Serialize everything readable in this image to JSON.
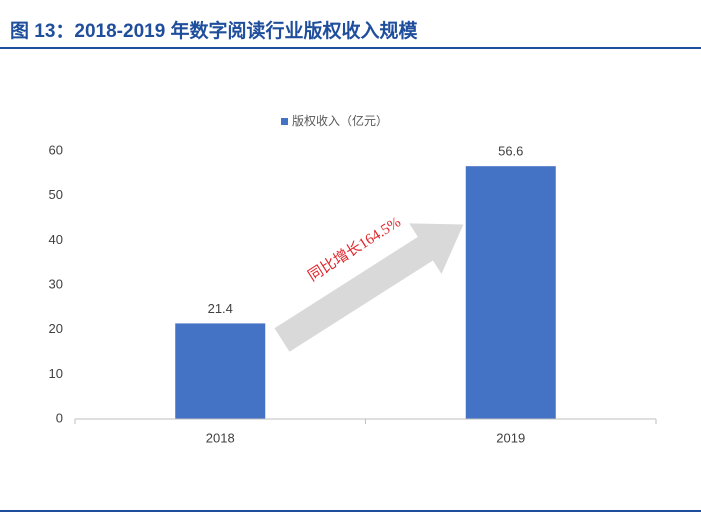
{
  "chart_data": {
    "type": "bar",
    "title": "图 13：2018-2019 年数字阅读行业版权收入规模",
    "categories": [
      "2018",
      "2019"
    ],
    "series": [
      {
        "name": "版权收入（亿元）",
        "color": "#4472c4",
        "values": [
          21.4,
          56.6
        ]
      }
    ],
    "ylim": [
      0,
      60
    ],
    "yticks": [
      0,
      10,
      20,
      30,
      40,
      50,
      60
    ],
    "annotation": "同比增长164.5%"
  }
}
